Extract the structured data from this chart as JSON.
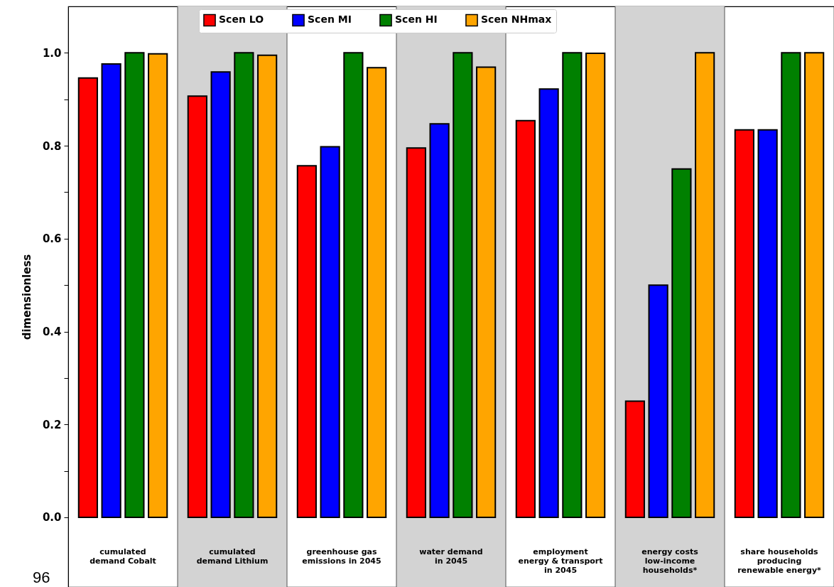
{
  "chart_data": {
    "type": "bar",
    "ylabel": "dimensionless",
    "categories": [
      "cumulated\ndemand Cobalt",
      "cumulated\ndemand Lithium",
      "greenhouse gas\nemissions in 2045",
      "water demand\nin 2045",
      "employment\nenergy & transport\nin 2045",
      "energy costs\nlow-income\nhouseholds*",
      "share households\nproducing\nrenewable energy*"
    ],
    "series": [
      {
        "name": "Scen LO",
        "color": "#ff0000",
        "values": [
          0.946,
          0.907,
          0.757,
          0.795,
          0.854,
          0.25,
          0.834
        ]
      },
      {
        "name": "Scen MI",
        "color": "#0000ff",
        "values": [
          0.976,
          0.959,
          0.798,
          0.847,
          0.922,
          0.5,
          0.834
        ]
      },
      {
        "name": "Scen HI",
        "color": "#008000",
        "values": [
          1.0,
          1.0,
          1.0,
          1.0,
          1.0,
          0.75,
          1.0
        ]
      },
      {
        "name": "Scen NHmax",
        "color": "#ffa500",
        "values": [
          0.998,
          0.995,
          0.968,
          0.969,
          0.999,
          1.0,
          1.0
        ]
      }
    ],
    "ylim": [
      -0.15,
      1.1
    ],
    "yticks": [
      {
        "value": 0,
        "label": "0.0"
      },
      {
        "value": 0.1,
        "label": null
      },
      0.2,
      {
        "value": 0.3,
        "label": null
      },
      0.4,
      {
        "value": 0.5,
        "label": null
      },
      0.6,
      {
        "value": 0.7,
        "label": null
      },
      0.8,
      {
        "value": 0.9,
        "label": null
      },
      {
        "value": 1,
        "label": "1.0"
      }
    ],
    "bands": [
      {
        "axis": "x",
        "from": "cumulated\ndemand Lithium",
        "to": "cumulated\ndemand Lithium",
        "color": "#d3d3d3"
      },
      {
        "axis": "x",
        "from": "water demand\nin 2045",
        "to": "water demand\nin 2045",
        "color": "#d3d3d3"
      },
      {
        "axis": "x",
        "from": "energy costs\nlow-income\nhouseholds*",
        "to": "energy costs\nlow-income\nhouseholds*",
        "color": "#d3d3d3"
      }
    ],
    "legend": "top",
    "annotations": [
      "96"
    ]
  }
}
